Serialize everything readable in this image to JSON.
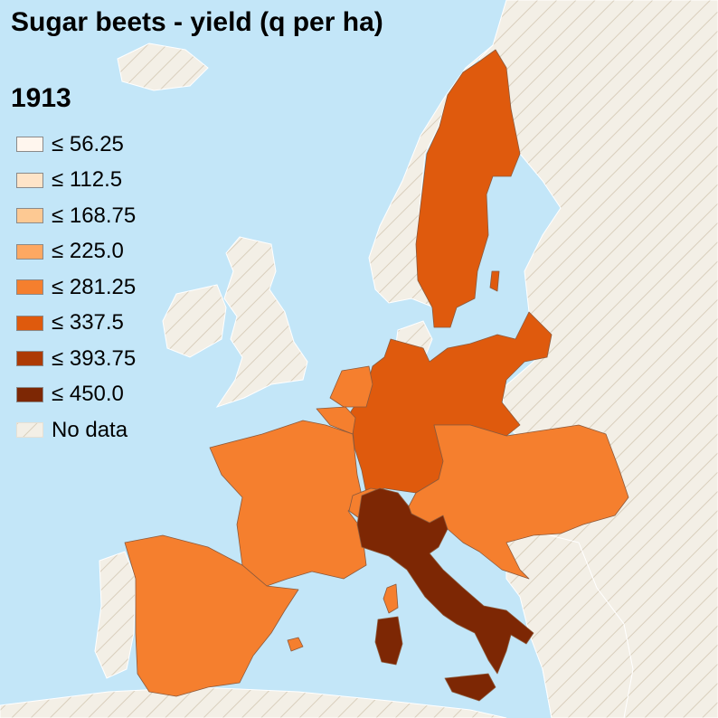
{
  "title": "Sugar beets - yield (q per ha)",
  "year": "1913",
  "colors": {
    "sea": "#c3e6f8",
    "nodata_fill": "#f3efe6",
    "nodata_hatch": "#d9cfbd",
    "border": "#8c5a3c"
  },
  "legend": [
    {
      "label": "≤ 56.25",
      "color": "#fff6ee"
    },
    {
      "label": "≤ 112.5",
      "color": "#fee4c8"
    },
    {
      "label": "≤ 168.75",
      "color": "#fdc993"
    },
    {
      "label": "≤ 225.0",
      "color": "#fda862"
    },
    {
      "label": "≤ 281.25",
      "color": "#f57f2e"
    },
    {
      "label": "≤ 337.5",
      "color": "#df5a0d"
    },
    {
      "label": "≤ 393.75",
      "color": "#ad3a04"
    },
    {
      "label": "≤ 450.0",
      "color": "#7d2704"
    }
  ],
  "nodata_label": "No data",
  "regions": [
    {
      "name": "Sweden",
      "class": "≤ 337.5"
    },
    {
      "name": "German Empire",
      "class": "≤ 337.5"
    },
    {
      "name": "Netherlands",
      "class": "≤ 281.25"
    },
    {
      "name": "Belgium",
      "class": "≤ 281.25"
    },
    {
      "name": "France",
      "class": "≤ 281.25"
    },
    {
      "name": "Spain",
      "class": "≤ 281.25"
    },
    {
      "name": "Austria-Hungary",
      "class": "≤ 281.25"
    },
    {
      "name": "Switzerland",
      "class": "≤ 281.25"
    },
    {
      "name": "Italy",
      "class": "≤ 450.0"
    }
  ]
}
